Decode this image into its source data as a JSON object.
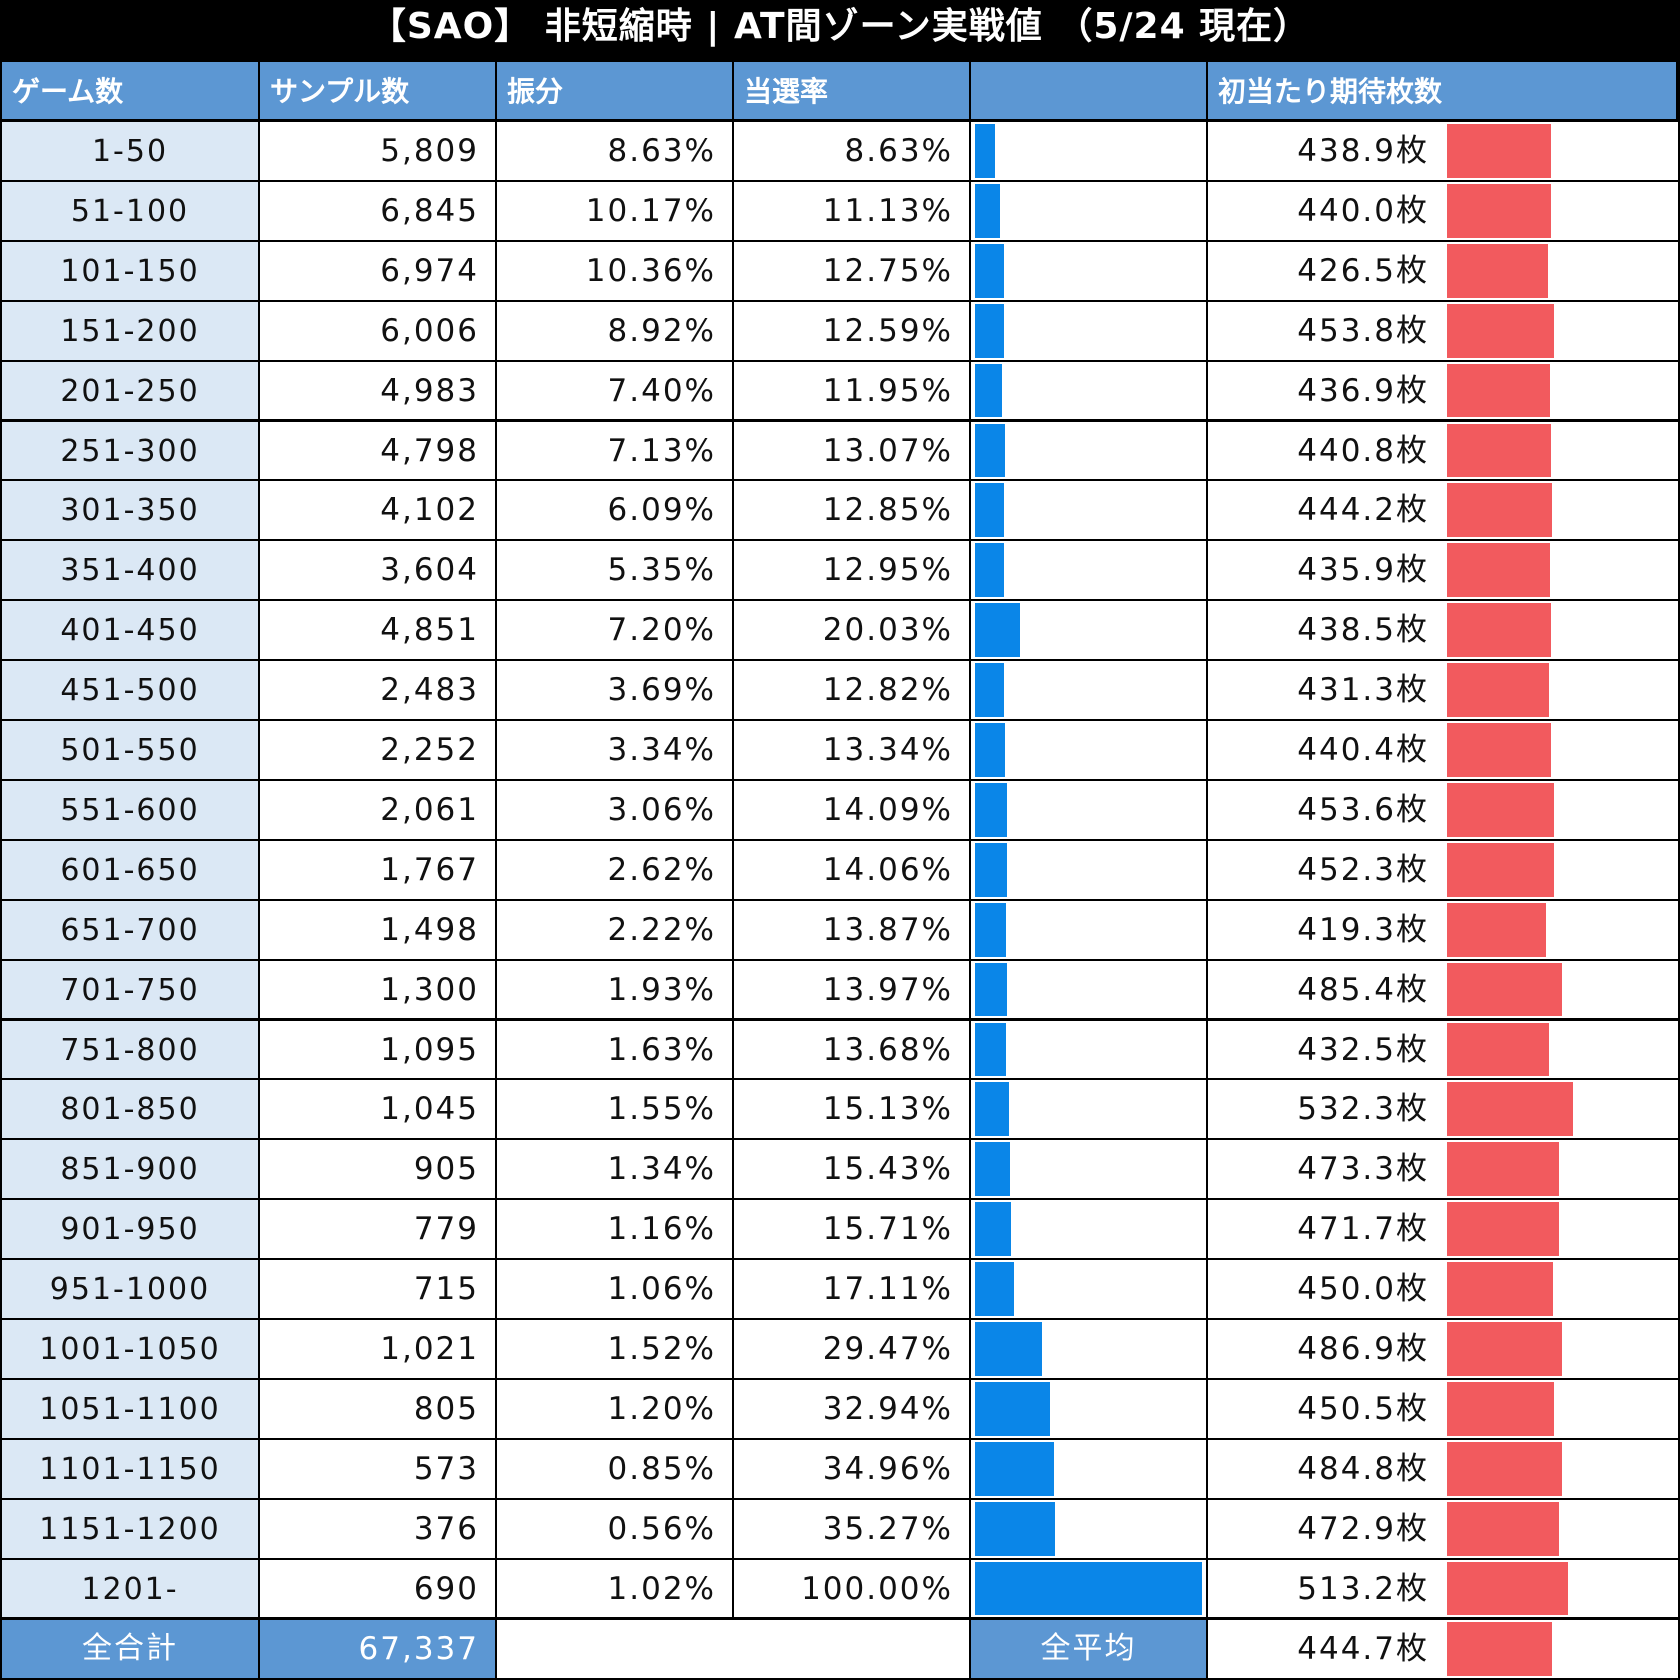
{
  "title": "【SAO】 非短縮時 | AT間ゾーン実戦値 （5/24 現在）",
  "colors": {
    "header_bg": "#5c97d3",
    "zone_bg": "#dbe8f5",
    "hit_bar": "#0a86e8",
    "coin_bar": "#f25a5e"
  },
  "chart_data": {
    "type": "table",
    "title": "【SAO】 非短縮時 | AT間ゾーン実戦値 （5/24 現在）",
    "columns": [
      "ゲーム数",
      "サンプル数",
      "振分",
      "当選率",
      "",
      "初当たり期待枚数"
    ],
    "rows": [
      {
        "zone": "1-50",
        "samples": "5,809",
        "share": "8.63%",
        "rate": "8.63%",
        "rate_value": 8.63,
        "coins": "438.9枚",
        "coins_value": 438.9
      },
      {
        "zone": "51-100",
        "samples": "6,845",
        "share": "10.17%",
        "rate": "11.13%",
        "rate_value": 11.13,
        "coins": "440.0枚",
        "coins_value": 440.0
      },
      {
        "zone": "101-150",
        "samples": "6,974",
        "share": "10.36%",
        "rate": "12.75%",
        "rate_value": 12.75,
        "coins": "426.5枚",
        "coins_value": 426.5
      },
      {
        "zone": "151-200",
        "samples": "6,006",
        "share": "8.92%",
        "rate": "12.59%",
        "rate_value": 12.59,
        "coins": "453.8枚",
        "coins_value": 453.8
      },
      {
        "zone": "201-250",
        "samples": "4,983",
        "share": "7.40%",
        "rate": "11.95%",
        "rate_value": 11.95,
        "coins": "436.9枚",
        "coins_value": 436.9
      },
      {
        "zone": "251-300",
        "samples": "4,798",
        "share": "7.13%",
        "rate": "13.07%",
        "rate_value": 13.07,
        "coins": "440.8枚",
        "coins_value": 440.8
      },
      {
        "zone": "301-350",
        "samples": "4,102",
        "share": "6.09%",
        "rate": "12.85%",
        "rate_value": 12.85,
        "coins": "444.2枚",
        "coins_value": 444.2
      },
      {
        "zone": "351-400",
        "samples": "3,604",
        "share": "5.35%",
        "rate": "12.95%",
        "rate_value": 12.95,
        "coins": "435.9枚",
        "coins_value": 435.9
      },
      {
        "zone": "401-450",
        "samples": "4,851",
        "share": "7.20%",
        "rate": "20.03%",
        "rate_value": 20.03,
        "coins": "438.5枚",
        "coins_value": 438.5
      },
      {
        "zone": "451-500",
        "samples": "2,483",
        "share": "3.69%",
        "rate": "12.82%",
        "rate_value": 12.82,
        "coins": "431.3枚",
        "coins_value": 431.3
      },
      {
        "zone": "501-550",
        "samples": "2,252",
        "share": "3.34%",
        "rate": "13.34%",
        "rate_value": 13.34,
        "coins": "440.4枚",
        "coins_value": 440.4
      },
      {
        "zone": "551-600",
        "samples": "2,061",
        "share": "3.06%",
        "rate": "14.09%",
        "rate_value": 14.09,
        "coins": "453.6枚",
        "coins_value": 453.6
      },
      {
        "zone": "601-650",
        "samples": "1,767",
        "share": "2.62%",
        "rate": "14.06%",
        "rate_value": 14.06,
        "coins": "452.3枚",
        "coins_value": 452.3
      },
      {
        "zone": "651-700",
        "samples": "1,498",
        "share": "2.22%",
        "rate": "13.87%",
        "rate_value": 13.87,
        "coins": "419.3枚",
        "coins_value": 419.3
      },
      {
        "zone": "701-750",
        "samples": "1,300",
        "share": "1.93%",
        "rate": "13.97%",
        "rate_value": 13.97,
        "coins": "485.4枚",
        "coins_value": 485.4
      },
      {
        "zone": "751-800",
        "samples": "1,095",
        "share": "1.63%",
        "rate": "13.68%",
        "rate_value": 13.68,
        "coins": "432.5枚",
        "coins_value": 432.5
      },
      {
        "zone": "801-850",
        "samples": "1,045",
        "share": "1.55%",
        "rate": "15.13%",
        "rate_value": 15.13,
        "coins": "532.3枚",
        "coins_value": 532.3
      },
      {
        "zone": "851-900",
        "samples": "905",
        "share": "1.34%",
        "rate": "15.43%",
        "rate_value": 15.43,
        "coins": "473.3枚",
        "coins_value": 473.3
      },
      {
        "zone": "901-950",
        "samples": "779",
        "share": "1.16%",
        "rate": "15.71%",
        "rate_value": 15.71,
        "coins": "471.7枚",
        "coins_value": 471.7
      },
      {
        "zone": "951-1000",
        "samples": "715",
        "share": "1.06%",
        "rate": "17.11%",
        "rate_value": 17.11,
        "coins": "450.0枚",
        "coins_value": 450.0
      },
      {
        "zone": "1001-1050",
        "samples": "1,021",
        "share": "1.52%",
        "rate": "29.47%",
        "rate_value": 29.47,
        "coins": "486.9枚",
        "coins_value": 486.9
      },
      {
        "zone": "1051-1100",
        "samples": "805",
        "share": "1.20%",
        "rate": "32.94%",
        "rate_value": 32.94,
        "coins": "450.5枚",
        "coins_value": 450.5
      },
      {
        "zone": "1101-1150",
        "samples": "573",
        "share": "0.85%",
        "rate": "34.96%",
        "rate_value": 34.96,
        "coins": "484.8枚",
        "coins_value": 484.8
      },
      {
        "zone": "1151-1200",
        "samples": "376",
        "share": "0.56%",
        "rate": "35.27%",
        "rate_value": 35.27,
        "coins": "472.9枚",
        "coins_value": 472.9
      },
      {
        "zone": "1201-",
        "samples": "690",
        "share": "1.02%",
        "rate": "100.00%",
        "rate_value": 100.0,
        "coins": "513.2枚",
        "coins_value": 513.2
      }
    ],
    "footer": {
      "total_label": "全合計",
      "total_samples": "67,337",
      "avg_label": "全平均",
      "avg_coins": "444.7枚",
      "avg_coins_value": 444.7
    }
  }
}
